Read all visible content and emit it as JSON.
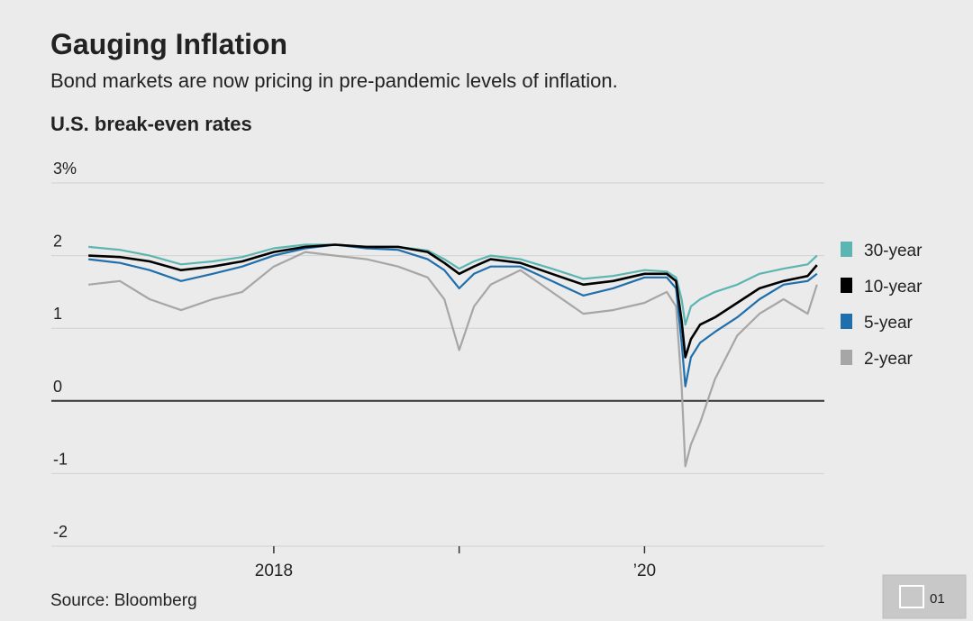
{
  "chart_data": {
    "type": "line",
    "title": "Gauging Inflation",
    "subtitle": "Bond markets are now pricing in pre-pandemic levels of inflation.",
    "axis_title": "U.S. break-even rates",
    "source": "Source: Bloomberg",
    "x": [
      2017.0,
      2017.17,
      2017.33,
      2017.5,
      2017.67,
      2017.83,
      2018.0,
      2018.17,
      2018.33,
      2018.5,
      2018.67,
      2018.83,
      2018.92,
      2019.0,
      2019.08,
      2019.17,
      2019.33,
      2019.5,
      2019.67,
      2019.83,
      2020.0,
      2020.12,
      2020.17,
      2020.2,
      2020.22,
      2020.25,
      2020.3,
      2020.38,
      2020.5,
      2020.62,
      2020.75,
      2020.88,
      2020.93
    ],
    "series": [
      {
        "name": "30-year",
        "color": "#5bb5b0",
        "values": [
          2.12,
          2.08,
          2.0,
          1.88,
          1.92,
          1.98,
          2.1,
          2.15,
          2.15,
          2.12,
          2.12,
          2.07,
          1.95,
          1.82,
          1.92,
          2.0,
          1.95,
          1.82,
          1.68,
          1.72,
          1.8,
          1.78,
          1.7,
          1.4,
          1.05,
          1.3,
          1.4,
          1.5,
          1.6,
          1.75,
          1.82,
          1.88,
          2.0
        ]
      },
      {
        "name": "10-year",
        "color": "#000000",
        "values": [
          2.0,
          1.98,
          1.92,
          1.8,
          1.85,
          1.92,
          2.05,
          2.12,
          2.15,
          2.12,
          2.12,
          2.05,
          1.9,
          1.75,
          1.85,
          1.95,
          1.9,
          1.75,
          1.6,
          1.65,
          1.75,
          1.75,
          1.65,
          1.1,
          0.6,
          0.85,
          1.05,
          1.15,
          1.35,
          1.55,
          1.65,
          1.72,
          1.87
        ]
      },
      {
        "name": "5-year",
        "color": "#1f6fad",
        "values": [
          1.95,
          1.9,
          1.8,
          1.65,
          1.75,
          1.85,
          2.0,
          2.1,
          2.15,
          2.1,
          2.08,
          1.95,
          1.8,
          1.55,
          1.75,
          1.85,
          1.85,
          1.65,
          1.45,
          1.55,
          1.7,
          1.7,
          1.55,
          0.8,
          0.2,
          0.6,
          0.8,
          0.95,
          1.15,
          1.4,
          1.6,
          1.65,
          1.75
        ]
      },
      {
        "name": "2-year",
        "color": "#a6a6a6",
        "values": [
          1.6,
          1.65,
          1.4,
          1.25,
          1.4,
          1.5,
          1.85,
          2.05,
          2.0,
          1.95,
          1.85,
          1.7,
          1.4,
          0.7,
          1.3,
          1.6,
          1.8,
          1.5,
          1.2,
          1.25,
          1.35,
          1.5,
          1.3,
          0.2,
          -0.9,
          -0.6,
          -0.3,
          0.3,
          0.9,
          1.2,
          1.4,
          1.2,
          1.6
        ]
      }
    ],
    "xlim": [
      2016.8,
      2020.97
    ],
    "xticks": [
      2018,
      {
        "value": 2019,
        "label": null
      },
      {
        "value": 2020,
        "label": "’20"
      }
    ],
    "ylim": [
      -2,
      3
    ],
    "yticks": [
      {
        "value": 3,
        "label": "3%"
      },
      2,
      1,
      0,
      -1,
      -2
    ],
    "grid": true,
    "legend": "right"
  },
  "badge": "01"
}
